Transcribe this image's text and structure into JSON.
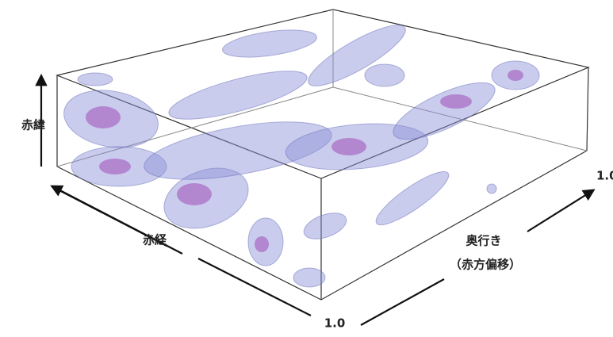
{
  "labels": {
    "declination": "赤緯",
    "right_ascension": "赤経",
    "depth": "奥行き",
    "depth_note": "（赤方偏移）"
  },
  "ticks": {
    "front": "1.0",
    "right": "1.0"
  }
}
